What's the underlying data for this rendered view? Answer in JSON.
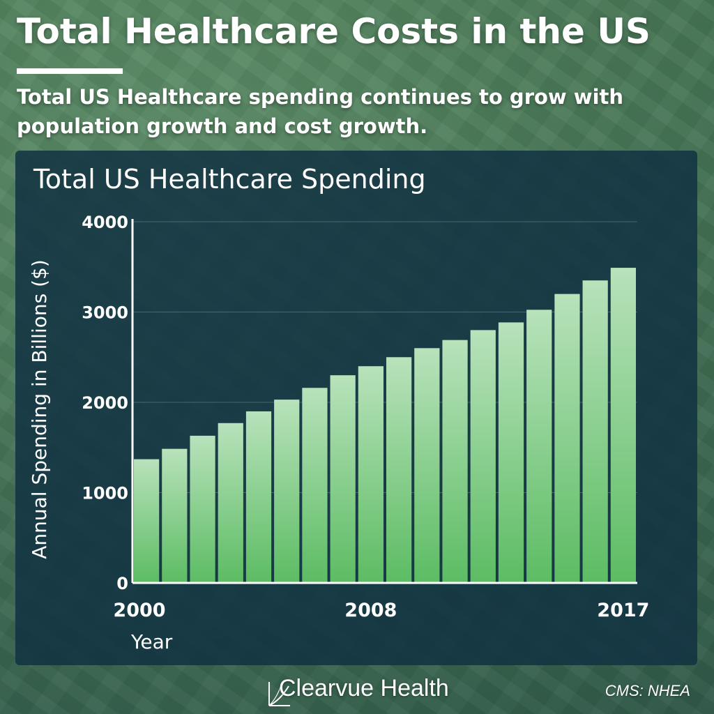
{
  "header": {
    "title": "Total Healthcare Costs in the US",
    "subtitle": "Total US Healthcare spending continues to grow with population growth and cost growth."
  },
  "footer": {
    "brand": "Clearvue Health",
    "source": "CMS: NHEA"
  },
  "colors": {
    "bar_top": "#b8e2bb",
    "bar_bottom": "#5cbc63",
    "panel": "#123242"
  },
  "chart_data": {
    "type": "bar",
    "title": "Total US Healthcare Spending",
    "xlabel": "Year",
    "ylabel": "Annual Spending in Billions ($)",
    "ylim": [
      0,
      4000
    ],
    "yticks": [
      0,
      1000,
      2000,
      3000,
      4000
    ],
    "xtick_labels": [
      "2000",
      "2008",
      "2017"
    ],
    "grid": true,
    "categories": [
      "2000",
      "2001",
      "2002",
      "2003",
      "2004",
      "2005",
      "2006",
      "2007",
      "2008",
      "2009",
      "2010",
      "2011",
      "2012",
      "2013",
      "2014",
      "2015",
      "2016",
      "2017"
    ],
    "values": [
      1370,
      1485,
      1630,
      1770,
      1900,
      2030,
      2160,
      2300,
      2400,
      2500,
      2600,
      2690,
      2800,
      2885,
      3025,
      3200,
      3350,
      3490
    ]
  }
}
